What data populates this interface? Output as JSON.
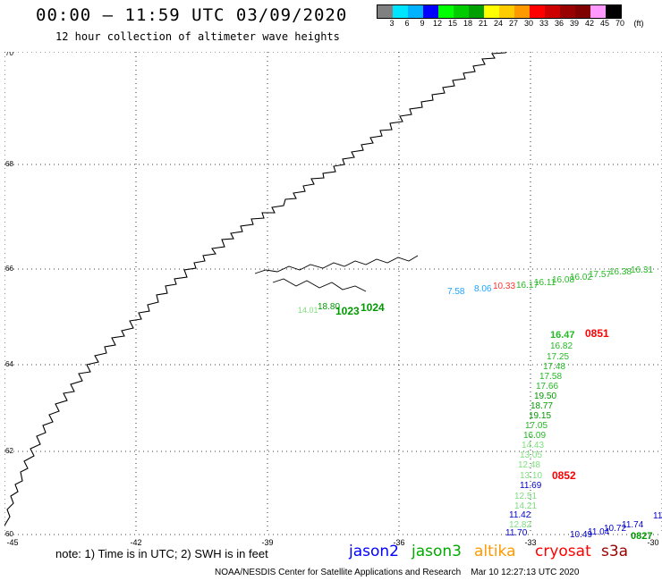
{
  "header": {
    "title": "00:00 – 11:59 UTC 03/09/2020",
    "subtitle": "12 hour collection of altimeter wave heights"
  },
  "color_scale": {
    "colors": [
      "#808080",
      "#00e5ff",
      "#00b2ff",
      "#0000ff",
      "#00ff00",
      "#00cc00",
      "#00a000",
      "#ffff00",
      "#ffcc00",
      "#ff9900",
      "#ff0000",
      "#cc0000",
      "#990000",
      "#800000",
      "#ff99ff",
      "#000000"
    ],
    "labels": [
      "3",
      "6",
      "9",
      "12",
      "15",
      "18",
      "21",
      "24",
      "27",
      "30",
      "33",
      "36",
      "39",
      "42",
      "45",
      "70",
      "(ft)"
    ]
  },
  "axes": {
    "lat_labels": [
      "70",
      "68",
      "66",
      "64",
      "62",
      "60"
    ],
    "lon_labels": [
      "-45",
      "-42",
      "-39",
      "-36",
      "-33",
      "-30"
    ]
  },
  "observations": [
    {
      "text": "14.01",
      "color": "#7fe07f"
    },
    {
      "text": "18.80",
      "color": "#009900"
    },
    {
      "text": "1023",
      "color": "#009900"
    },
    {
      "text": "1024",
      "color": "#009900"
    },
    {
      "text": "7.58",
      "color": "#1aa3ff"
    },
    {
      "text": "8.06",
      "color": "#1aa3ff"
    },
    {
      "text": "10.33",
      "color": "#ff3333"
    },
    {
      "text": "16.17",
      "color": "#22bb22"
    },
    {
      "text": "16.11",
      "color": "#22bb22"
    },
    {
      "text": "16.08",
      "color": "#22bb22"
    },
    {
      "text": "16.02",
      "color": "#22bb22"
    },
    {
      "text": "17.57",
      "color": "#22bb22"
    },
    {
      "text": "16.38",
      "color": "#22bb22"
    },
    {
      "text": "16.31",
      "color": "#22bb22"
    },
    {
      "text": "16.47",
      "color": "#22bb22"
    },
    {
      "text": "0851",
      "color": "#ff0000"
    },
    {
      "text": "16.82",
      "color": "#22bb22"
    },
    {
      "text": "17.25",
      "color": "#22bb22"
    },
    {
      "text": "17.48",
      "color": "#22bb22"
    },
    {
      "text": "17.58",
      "color": "#22bb22"
    },
    {
      "text": "17.66",
      "color": "#22bb22"
    },
    {
      "text": "19.50",
      "color": "#009900"
    },
    {
      "text": "18.77",
      "color": "#009900"
    },
    {
      "text": "19.15",
      "color": "#009900"
    },
    {
      "text": "17.05",
      "color": "#22bb22"
    },
    {
      "text": "16.09",
      "color": "#22bb22"
    },
    {
      "text": "14.43",
      "color": "#7fe07f"
    },
    {
      "text": "13.05",
      "color": "#7fe07f"
    },
    {
      "text": "12.48",
      "color": "#7fe07f"
    },
    {
      "text": "13.10",
      "color": "#7fe07f"
    },
    {
      "text": "0852",
      "color": "#ff0000"
    },
    {
      "text": "11.69",
      "color": "#0000cc"
    },
    {
      "text": "12.51",
      "color": "#7fe07f"
    },
    {
      "text": "14.21",
      "color": "#7fe07f"
    },
    {
      "text": "11.42",
      "color": "#0000cc"
    },
    {
      "text": "12.82",
      "color": "#7fe07f"
    },
    {
      "text": "11.70",
      "color": "#0000cc"
    },
    {
      "text": "10.49",
      "color": "#0000cc"
    },
    {
      "text": "11.04",
      "color": "#0000cc"
    },
    {
      "text": "10.72",
      "color": "#0000cc"
    },
    {
      "text": "11.74",
      "color": "#0000cc"
    },
    {
      "text": "0827",
      "color": "#009900"
    },
    {
      "text": "11",
      "color": "#0000cc"
    }
  ],
  "footer": {
    "note": "note:  1) Time is in UTC;  2) SWH is in feet",
    "legend": [
      {
        "label": "jason2",
        "color": "#0000ff"
      },
      {
        "label": "jason3",
        "color": "#00aa00"
      },
      {
        "label": "altika",
        "color": "#ff9900"
      },
      {
        "label": "cryosat",
        "color": "#ff0000"
      },
      {
        "label": "s3a",
        "color": "#990000"
      }
    ],
    "credit": "NOAA/NESDIS Center for Satellite Applications and Research    Mar 10 12:27:13 UTC 2020"
  }
}
